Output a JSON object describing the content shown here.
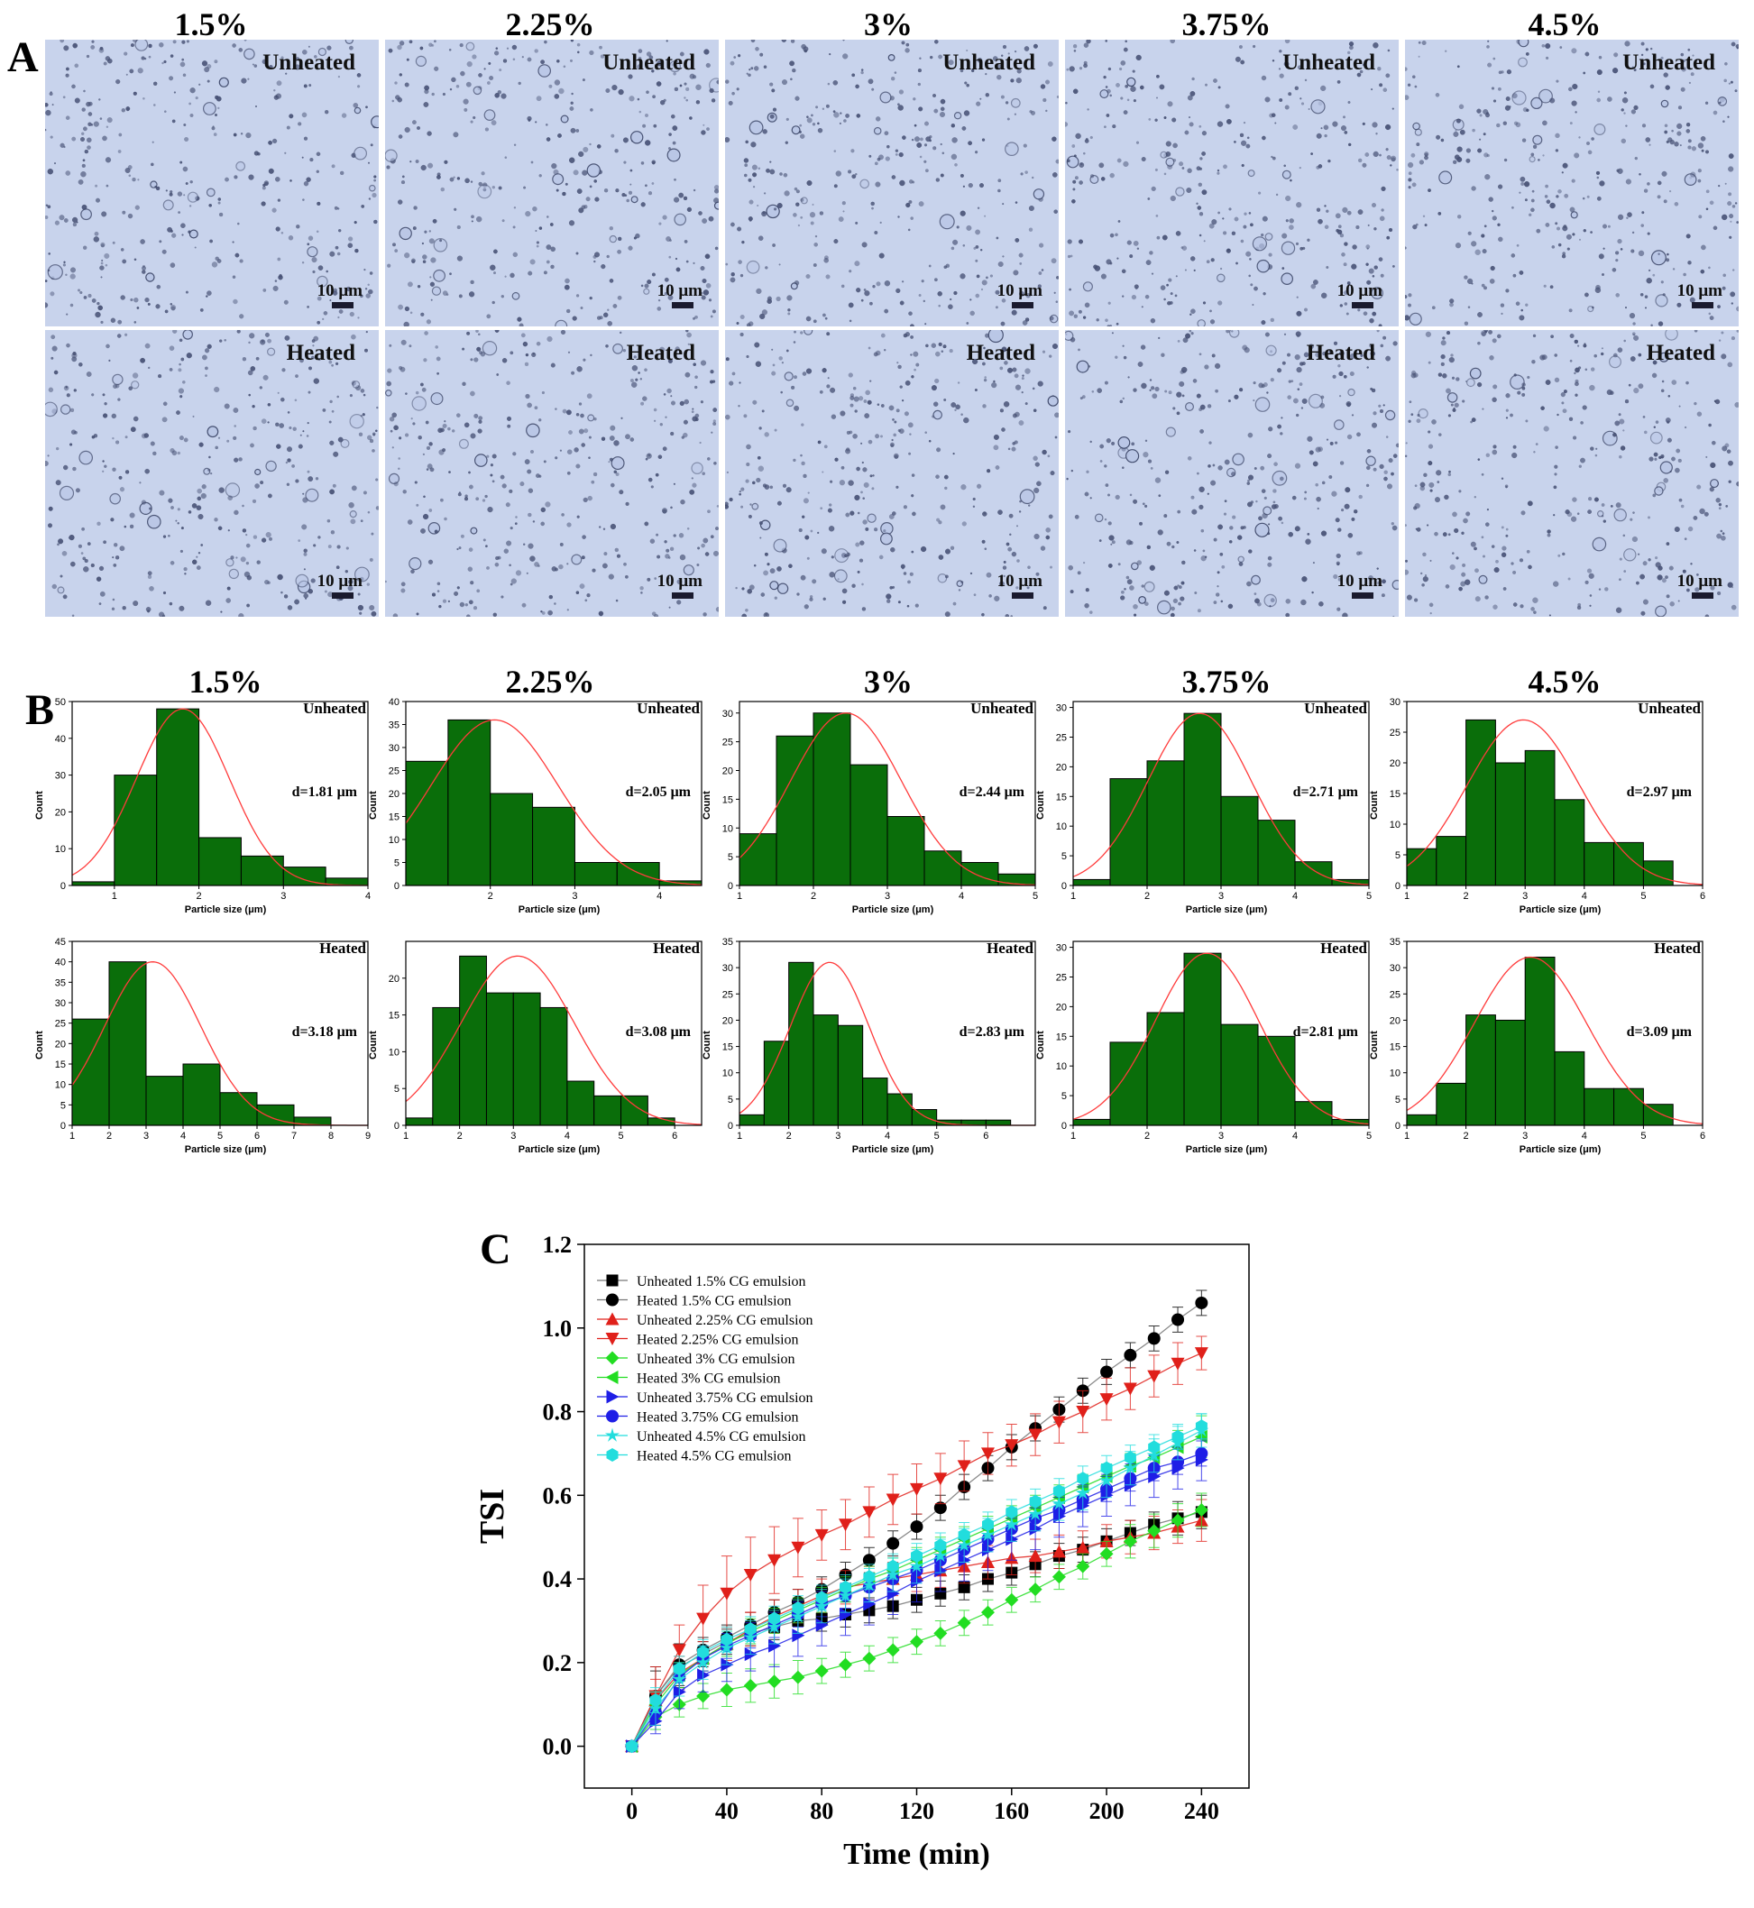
{
  "panel_a": {
    "letter": "A",
    "columns": [
      "1.5%",
      "2.25%",
      "3%",
      "3.75%",
      "4.5%"
    ],
    "rows": [
      "Unheated",
      "Heated"
    ],
    "scale_bar_label": "10 μm"
  },
  "panel_b": {
    "letter": "B",
    "columns": [
      "1.5%",
      "2.25%",
      "3%",
      "3.75%",
      "4.5%"
    ]
  },
  "panel_c": {
    "letter": "C"
  },
  "colors": {
    "bar": "#0a6e0a",
    "fit": "#ff3b3b",
    "micro_bg": "#c8d3ec"
  },
  "chart_data": [
    {
      "type": "bar",
      "id": "h-unheated-1.5",
      "condition": "Unheated",
      "concentration": "1.5%",
      "d_label": "d=1.81 μm",
      "xlabel": "Particle size (μm)",
      "ylabel": "Count",
      "bin_width": 0.5,
      "bin_start": 0.5,
      "values": [
        1,
        30,
        48,
        13,
        8,
        5,
        2
      ],
      "xlim": [
        0.5,
        4
      ],
      "ylim": [
        0,
        50
      ],
      "xticks": [
        1,
        2,
        3,
        4
      ],
      "yticks": [
        0,
        10,
        20,
        30,
        40,
        50
      ],
      "fit": {
        "mean": 1.81,
        "sd": 0.55,
        "peak": 48
      }
    },
    {
      "type": "bar",
      "id": "h-unheated-2.25",
      "condition": "Unheated",
      "concentration": "2.25%",
      "d_label": "d=2.05 μm",
      "xlabel": "Particle size (μm)",
      "ylabel": "Count",
      "bin_width": 0.5,
      "bin_start": 1,
      "values": [
        27,
        36,
        20,
        17,
        5,
        5,
        1
      ],
      "xlim": [
        1,
        4.5
      ],
      "ylim": [
        0,
        40
      ],
      "xticks": [
        2,
        3,
        4
      ],
      "yticks": [
        0,
        5,
        10,
        15,
        20,
        25,
        30,
        35,
        40
      ],
      "fit": {
        "mean": 2.05,
        "sd": 0.75,
        "peak": 36
      }
    },
    {
      "type": "bar",
      "id": "h-unheated-3",
      "condition": "Unheated",
      "concentration": "3%",
      "d_label": "d=2.44 μm",
      "xlabel": "Particle size (μm)",
      "ylabel": "Count",
      "bin_width": 0.5,
      "bin_start": 1,
      "values": [
        9,
        26,
        30,
        21,
        12,
        6,
        4,
        2
      ],
      "xlim": [
        1,
        5
      ],
      "ylim": [
        0,
        32
      ],
      "xticks": [
        1,
        2,
        3,
        4,
        5
      ],
      "yticks": [
        0,
        5,
        10,
        15,
        20,
        25,
        30
      ],
      "fit": {
        "mean": 2.44,
        "sd": 0.75,
        "peak": 30
      }
    },
    {
      "type": "bar",
      "id": "h-unheated-3.75",
      "condition": "Unheated",
      "concentration": "3.75%",
      "d_label": "d=2.71 μm",
      "xlabel": "Particle size (μm)",
      "ylabel": "Count",
      "bin_width": 0.5,
      "bin_start": 1,
      "values": [
        1,
        18,
        21,
        29,
        15,
        11,
        4,
        1
      ],
      "xlim": [
        1,
        5
      ],
      "ylim": [
        0,
        31
      ],
      "xticks": [
        1,
        2,
        3,
        4,
        5
      ],
      "yticks": [
        0,
        5,
        10,
        15,
        20,
        25,
        30
      ],
      "fit": {
        "mean": 2.71,
        "sd": 0.7,
        "peak": 29
      }
    },
    {
      "type": "bar",
      "id": "h-unheated-4.5",
      "condition": "Unheated",
      "concentration": "4.5%",
      "d_label": "d=2.97 μm",
      "xlabel": "Particle size (μm)",
      "ylabel": "Count",
      "bin_width": 0.5,
      "bin_start": 1,
      "values": [
        6,
        8,
        27,
        20,
        22,
        14,
        7,
        7,
        4
      ],
      "xlim": [
        1,
        6
      ],
      "ylim": [
        0,
        30
      ],
      "xticks": [
        1,
        2,
        3,
        4,
        5,
        6
      ],
      "yticks": [
        0,
        5,
        10,
        15,
        20,
        25,
        30
      ],
      "fit": {
        "mean": 2.97,
        "sd": 0.95,
        "peak": 27
      }
    },
    {
      "type": "bar",
      "id": "h-heated-1.5",
      "condition": "Heated",
      "concentration": "1.5%",
      "d_label": "d=3.18 μm",
      "xlabel": "Particle size (μm)",
      "ylabel": "Count",
      "bin_width": 1,
      "bin_start": 1,
      "values": [
        26,
        40,
        12,
        15,
        8,
        5,
        2
      ],
      "xlim": [
        1,
        9
      ],
      "ylim": [
        0,
        45
      ],
      "xticks": [
        1,
        2,
        3,
        4,
        5,
        6,
        7,
        8,
        9
      ],
      "yticks": [
        0,
        5,
        10,
        15,
        20,
        25,
        30,
        35,
        40,
        45
      ],
      "fit": {
        "mean": 3.18,
        "sd": 1.3,
        "peak": 40
      }
    },
    {
      "type": "bar",
      "id": "h-heated-2.25",
      "condition": "Heated",
      "concentration": "2.25%",
      "d_label": "d=3.08 μm",
      "xlabel": "Particle size (μm)",
      "ylabel": "Count",
      "bin_width": 0.5,
      "bin_start": 1,
      "values": [
        1,
        16,
        23,
        18,
        18,
        16,
        6,
        4,
        4,
        1
      ],
      "xlim": [
        1,
        6.5
      ],
      "ylim": [
        0,
        25
      ],
      "xticks": [
        1,
        2,
        3,
        4,
        5,
        6
      ],
      "yticks": [
        0,
        5,
        10,
        15,
        20
      ],
      "fit": {
        "mean": 3.08,
        "sd": 1.05,
        "peak": 23
      }
    },
    {
      "type": "bar",
      "id": "h-heated-3",
      "condition": "Heated",
      "concentration": "3%",
      "d_label": "d=2.83 μm",
      "xlabel": "Particle size (μm)",
      "ylabel": "Count",
      "bin_width": 0.5,
      "bin_start": 1,
      "values": [
        2,
        16,
        31,
        21,
        19,
        9,
        6,
        3,
        1,
        1,
        1
      ],
      "xlim": [
        1,
        7
      ],
      "ylim": [
        0,
        35
      ],
      "xticks": [
        1,
        2,
        3,
        4,
        5,
        6
      ],
      "yticks": [
        0,
        5,
        10,
        15,
        20,
        25,
        30,
        35
      ],
      "fit": {
        "mean": 2.83,
        "sd": 0.8,
        "peak": 31
      }
    },
    {
      "type": "bar",
      "id": "h-heated-3.75",
      "condition": "Heated",
      "concentration": "3.75%",
      "d_label": "d=2.81 μm",
      "xlabel": "Particle size (μm)",
      "ylabel": "Count",
      "bin_width": 0.5,
      "bin_start": 1,
      "values": [
        1,
        14,
        19,
        29,
        17,
        15,
        4,
        1
      ],
      "xlim": [
        1,
        5
      ],
      "ylim": [
        0,
        31
      ],
      "xticks": [
        1,
        2,
        3,
        4,
        5
      ],
      "yticks": [
        0,
        5,
        10,
        15,
        20,
        25,
        30
      ],
      "fit": {
        "mean": 2.81,
        "sd": 0.7,
        "peak": 29
      }
    },
    {
      "type": "bar",
      "id": "h-heated-4.5",
      "condition": "Heated",
      "concentration": "4.5%",
      "d_label": "d=3.09 μm",
      "xlabel": "Particle size (μm)",
      "ylabel": "Count",
      "bin_width": 0.5,
      "bin_start": 1,
      "values": [
        2,
        8,
        21,
        20,
        32,
        14,
        7,
        7,
        4
      ],
      "xlim": [
        1,
        6
      ],
      "ylim": [
        0,
        35
      ],
      "xticks": [
        1,
        2,
        3,
        4,
        5,
        6
      ],
      "yticks": [
        0,
        5,
        10,
        15,
        20,
        25,
        30,
        35
      ],
      "fit": {
        "mean": 3.09,
        "sd": 0.95,
        "peak": 32
      }
    },
    {
      "type": "line",
      "id": "tsi",
      "xlabel": "Time (min)",
      "ylabel": "TSI",
      "xlim": [
        -20,
        260
      ],
      "ylim": [
        -0.1,
        1.2
      ],
      "xticks": [
        0,
        40,
        80,
        120,
        160,
        200,
        240
      ],
      "yticks": [
        0.0,
        0.2,
        0.4,
        0.6,
        0.8,
        1.0,
        1.2
      ],
      "x": [
        0,
        10,
        20,
        30,
        40,
        50,
        60,
        70,
        80,
        90,
        100,
        110,
        120,
        130,
        140,
        150,
        160,
        170,
        180,
        190,
        200,
        210,
        220,
        230,
        240
      ],
      "series": [
        {
          "name": "Unheated 1.5% CG emulsion",
          "color": "#000000",
          "marker": "square",
          "values": [
            0,
            0.12,
            0.19,
            0.22,
            0.25,
            0.27,
            0.285,
            0.3,
            0.305,
            0.315,
            0.325,
            0.335,
            0.35,
            0.365,
            0.38,
            0.4,
            0.415,
            0.435,
            0.455,
            0.47,
            0.49,
            0.51,
            0.53,
            0.545,
            0.56
          ],
          "err": [
            0,
            0.07,
            0.05,
            0.03,
            0.03,
            0.03,
            0.03,
            0.03,
            0.03,
            0.03,
            0.03,
            0.03,
            0.03,
            0.03,
            0.03,
            0.03,
            0.03,
            0.03,
            0.03,
            0.03,
            0.03,
            0.03,
            0.03,
            0.04,
            0.04
          ]
        },
        {
          "name": "Heated 1.5% CG emulsion",
          "color": "#000000",
          "marker": "circle",
          "values": [
            0,
            0.12,
            0.195,
            0.23,
            0.26,
            0.29,
            0.32,
            0.345,
            0.375,
            0.41,
            0.445,
            0.485,
            0.525,
            0.57,
            0.62,
            0.665,
            0.715,
            0.76,
            0.805,
            0.85,
            0.895,
            0.935,
            0.975,
            1.02,
            1.06
          ],
          "err": [
            0,
            0.06,
            0.05,
            0.03,
            0.03,
            0.03,
            0.03,
            0.03,
            0.03,
            0.03,
            0.03,
            0.03,
            0.03,
            0.03,
            0.03,
            0.03,
            0.03,
            0.03,
            0.03,
            0.03,
            0.03,
            0.03,
            0.03,
            0.03,
            0.03
          ]
        },
        {
          "name": "Unheated 2.25% CG emulsion",
          "color": "#e0201a",
          "marker": "triangle-up",
          "values": [
            0,
            0.11,
            0.175,
            0.21,
            0.245,
            0.28,
            0.31,
            0.335,
            0.36,
            0.38,
            0.39,
            0.4,
            0.41,
            0.42,
            0.43,
            0.44,
            0.45,
            0.455,
            0.465,
            0.475,
            0.49,
            0.5,
            0.51,
            0.525,
            0.54
          ],
          "err": [
            0,
            0.05,
            0.04,
            0.04,
            0.04,
            0.04,
            0.04,
            0.04,
            0.04,
            0.04,
            0.04,
            0.04,
            0.04,
            0.04,
            0.04,
            0.04,
            0.04,
            0.04,
            0.04,
            0.04,
            0.04,
            0.04,
            0.04,
            0.04,
            0.05
          ]
        },
        {
          "name": "Heated 2.25% CG emulsion",
          "color": "#e0201a",
          "marker": "triangle-down",
          "values": [
            0,
            0.12,
            0.23,
            0.305,
            0.365,
            0.41,
            0.445,
            0.475,
            0.505,
            0.53,
            0.56,
            0.59,
            0.615,
            0.64,
            0.67,
            0.7,
            0.72,
            0.745,
            0.775,
            0.8,
            0.83,
            0.855,
            0.885,
            0.915,
            0.94
          ],
          "err": [
            0,
            0.07,
            0.06,
            0.08,
            0.09,
            0.09,
            0.08,
            0.07,
            0.06,
            0.06,
            0.06,
            0.06,
            0.06,
            0.06,
            0.06,
            0.05,
            0.05,
            0.05,
            0.05,
            0.05,
            0.05,
            0.05,
            0.05,
            0.05,
            0.04
          ]
        },
        {
          "name": "Unheated 3% CG emulsion",
          "color": "#22dd22",
          "marker": "diamond",
          "values": [
            0,
            0.07,
            0.1,
            0.12,
            0.135,
            0.145,
            0.155,
            0.165,
            0.18,
            0.195,
            0.21,
            0.23,
            0.25,
            0.27,
            0.295,
            0.32,
            0.35,
            0.375,
            0.405,
            0.43,
            0.46,
            0.49,
            0.515,
            0.54,
            0.565
          ],
          "err": [
            0,
            0.03,
            0.03,
            0.03,
            0.04,
            0.04,
            0.04,
            0.04,
            0.03,
            0.03,
            0.03,
            0.03,
            0.03,
            0.03,
            0.03,
            0.03,
            0.03,
            0.03,
            0.03,
            0.03,
            0.03,
            0.04,
            0.04,
            0.04,
            0.04
          ]
        },
        {
          "name": "Heated 3% CG emulsion",
          "color": "#22dd22",
          "marker": "triangle-left",
          "values": [
            0,
            0.1,
            0.17,
            0.21,
            0.245,
            0.275,
            0.3,
            0.325,
            0.35,
            0.375,
            0.4,
            0.42,
            0.445,
            0.47,
            0.495,
            0.52,
            0.545,
            0.57,
            0.595,
            0.62,
            0.645,
            0.67,
            0.69,
            0.715,
            0.74
          ],
          "err": [
            0,
            0.03,
            0.03,
            0.03,
            0.03,
            0.03,
            0.03,
            0.03,
            0.03,
            0.03,
            0.03,
            0.03,
            0.03,
            0.03,
            0.03,
            0.03,
            0.03,
            0.03,
            0.03,
            0.03,
            0.03,
            0.03,
            0.03,
            0.04,
            0.05
          ]
        },
        {
          "name": "Unheated 3.75% CG emulsion",
          "color": "#1e1ee6",
          "marker": "triangle-right",
          "values": [
            0,
            0.06,
            0.13,
            0.17,
            0.195,
            0.22,
            0.24,
            0.265,
            0.29,
            0.315,
            0.34,
            0.365,
            0.395,
            0.42,
            0.445,
            0.47,
            0.495,
            0.52,
            0.55,
            0.575,
            0.6,
            0.625,
            0.645,
            0.665,
            0.685
          ],
          "err": [
            0,
            0.03,
            0.04,
            0.04,
            0.04,
            0.04,
            0.05,
            0.05,
            0.05,
            0.05,
            0.05,
            0.05,
            0.05,
            0.05,
            0.05,
            0.05,
            0.05,
            0.05,
            0.05,
            0.05,
            0.05,
            0.05,
            0.05,
            0.05,
            0.05
          ]
        },
        {
          "name": "Heated 3.75% CG emulsion",
          "color": "#1e1ee6",
          "marker": "circle",
          "values": [
            0,
            0.08,
            0.165,
            0.21,
            0.24,
            0.265,
            0.29,
            0.315,
            0.34,
            0.36,
            0.38,
            0.4,
            0.42,
            0.445,
            0.47,
            0.495,
            0.52,
            0.545,
            0.565,
            0.59,
            0.615,
            0.64,
            0.665,
            0.68,
            0.7
          ],
          "err": [
            0,
            0.03,
            0.03,
            0.03,
            0.03,
            0.03,
            0.03,
            0.03,
            0.03,
            0.03,
            0.03,
            0.03,
            0.03,
            0.03,
            0.03,
            0.03,
            0.03,
            0.03,
            0.03,
            0.03,
            0.03,
            0.03,
            0.03,
            0.03,
            0.03
          ]
        },
        {
          "name": "Unheated 4.5% CG emulsion",
          "color": "#22dddd",
          "marker": "star",
          "values": [
            0,
            0.09,
            0.16,
            0.2,
            0.235,
            0.26,
            0.285,
            0.31,
            0.335,
            0.36,
            0.385,
            0.41,
            0.43,
            0.455,
            0.48,
            0.505,
            0.53,
            0.555,
            0.58,
            0.605,
            0.635,
            0.665,
            0.695,
            0.725,
            0.755
          ],
          "err": [
            0,
            0.04,
            0.04,
            0.04,
            0.04,
            0.04,
            0.04,
            0.04,
            0.04,
            0.04,
            0.04,
            0.04,
            0.04,
            0.04,
            0.04,
            0.04,
            0.04,
            0.04,
            0.04,
            0.04,
            0.04,
            0.04,
            0.04,
            0.04,
            0.04
          ]
        },
        {
          "name": "Heated 4.5% CG emulsion",
          "color": "#22dddd",
          "marker": "hexagon",
          "values": [
            0,
            0.11,
            0.185,
            0.225,
            0.255,
            0.28,
            0.305,
            0.33,
            0.355,
            0.38,
            0.405,
            0.43,
            0.455,
            0.48,
            0.505,
            0.53,
            0.56,
            0.585,
            0.61,
            0.64,
            0.665,
            0.69,
            0.715,
            0.74,
            0.765
          ],
          "err": [
            0,
            0.03,
            0.03,
            0.03,
            0.03,
            0.03,
            0.03,
            0.03,
            0.03,
            0.03,
            0.03,
            0.03,
            0.03,
            0.03,
            0.03,
            0.03,
            0.03,
            0.03,
            0.03,
            0.03,
            0.03,
            0.03,
            0.03,
            0.03,
            0.03
          ]
        }
      ]
    }
  ]
}
